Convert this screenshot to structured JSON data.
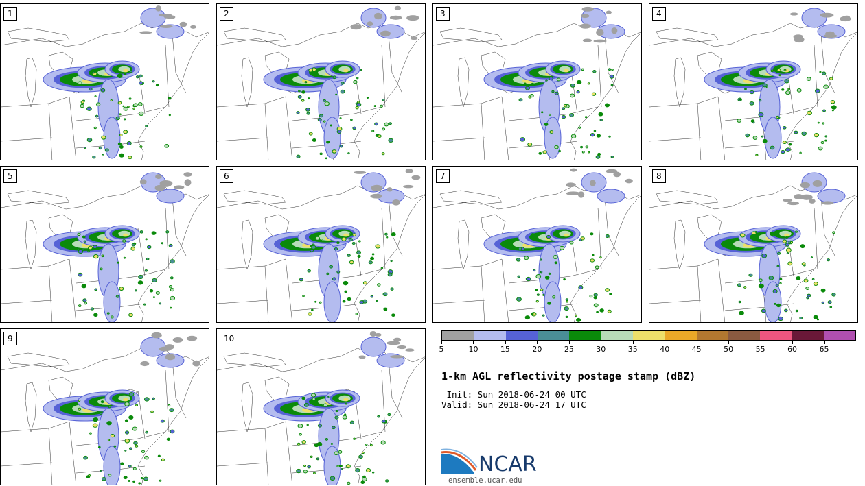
{
  "panels": [
    {
      "label": "1"
    },
    {
      "label": "2"
    },
    {
      "label": "3"
    },
    {
      "label": "4"
    },
    {
      "label": "5"
    },
    {
      "label": "6"
    },
    {
      "label": "7"
    },
    {
      "label": "8"
    },
    {
      "label": "9"
    },
    {
      "label": "10"
    }
  ],
  "colorbar": {
    "ticks": [
      "5",
      "10",
      "15",
      "20",
      "25",
      "30",
      "35",
      "40",
      "45",
      "50",
      "55",
      "60",
      "65"
    ],
    "colors": [
      "#a0a0a0",
      "#b4bcef",
      "#5662d6",
      "#4a8e96",
      "#0a8a0a",
      "#b8dcb8",
      "#ede06a",
      "#eaa828",
      "#b27830",
      "#8a5a40",
      "#ee5680",
      "#6a1838",
      "#b04fb0"
    ]
  },
  "title": "1-km AGL reflectivity postage stamp (dBZ)",
  "init": " Init: Sun 2018-06-24 00 UTC",
  "valid": "Valid: Sun 2018-06-24 17 UTC",
  "logo": {
    "text": "NCAR",
    "url": "ensemble.ucar.edu"
  }
}
